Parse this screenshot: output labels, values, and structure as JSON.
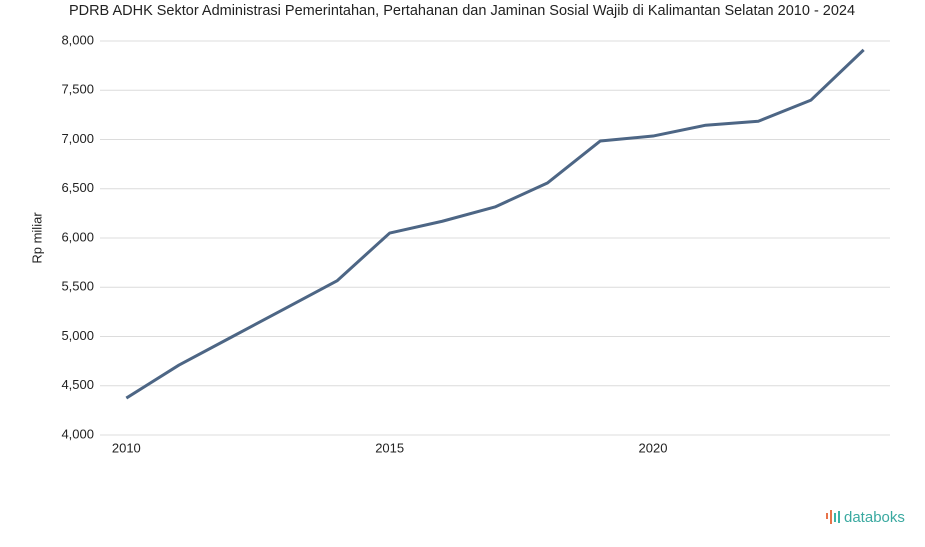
{
  "chart_data": {
    "type": "line",
    "title": "PDRB ADHK Sektor Administrasi Pemerintahan, Pertahanan dan Jaminan Sosial Wajib di Kalimantan Selatan 2010 - 2024",
    "y_label": "Rp miliar",
    "x": [
      2010,
      2011,
      2012,
      2013,
      2014,
      2015,
      2016,
      2017,
      2018,
      2019,
      2020,
      2021,
      2022,
      2023,
      2024
    ],
    "xlim": [
      2009.5,
      2024.5
    ],
    "xticks": [
      2010,
      2015,
      2020
    ],
    "series": [
      {
        "name": "PDRB ADHK",
        "color": "#4d6685",
        "values": [
          4375,
          4710,
          4995,
          5280,
          5565,
          6050,
          6170,
          6315,
          6560,
          6985,
          7035,
          7145,
          7185,
          7400,
          7910
        ]
      }
    ],
    "ylim": [
      4000,
      8000
    ],
    "yticks": [
      {
        "value": 4000,
        "label": "4,000"
      },
      {
        "value": 4500,
        "label": "4,500"
      },
      {
        "value": 5000,
        "label": "5,000"
      },
      {
        "value": 5500,
        "label": "5,500"
      },
      {
        "value": 6000,
        "label": "6,000"
      },
      {
        "value": 6500,
        "label": "6,500"
      },
      {
        "value": 7000,
        "label": "7,000"
      },
      {
        "value": 7500,
        "label": "7,500"
      },
      {
        "value": 8000,
        "label": "8,000"
      }
    ],
    "grid": true,
    "brand": "databoks"
  }
}
